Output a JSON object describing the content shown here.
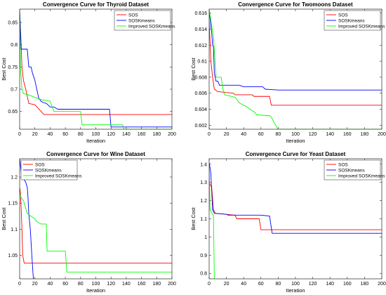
{
  "chart_data": [
    {
      "type": "line",
      "title": "Convergence Curve for Thyroid Dataset",
      "xlabel": "Iteration",
      "ylabel": "Best Cost",
      "xlim": [
        0,
        200
      ],
      "ylim": [
        0.61,
        0.88
      ],
      "xticks": [
        0,
        20,
        40,
        60,
        80,
        100,
        120,
        140,
        160,
        180,
        200
      ],
      "yticks": [
        0.65,
        0.7,
        0.75,
        0.8,
        0.85
      ],
      "ytick_labels": [
        "0.65",
        "0.7",
        "0.75",
        "0.8",
        "0.85"
      ],
      "legend_position": "top-right",
      "series": [
        {
          "name": "SOS",
          "color": "#ff0000",
          "points": [
            [
              0,
              0.875
            ],
            [
              2,
              0.8
            ],
            [
              3,
              0.75
            ],
            [
              5,
              0.72
            ],
            [
              8,
              0.7
            ],
            [
              12,
              0.668
            ],
            [
              20,
              0.665
            ],
            [
              32,
              0.643
            ],
            [
              200,
              0.643
            ]
          ]
        },
        {
          "name": "SOSKmeans",
          "color": "#0000ff",
          "points": [
            [
              0,
              0.88
            ],
            [
              2,
              0.79
            ],
            [
              10,
              0.79
            ],
            [
              12,
              0.75
            ],
            [
              15,
              0.75
            ],
            [
              17,
              0.735
            ],
            [
              20,
              0.72
            ],
            [
              25,
              0.68
            ],
            [
              28,
              0.673
            ],
            [
              31,
              0.67
            ],
            [
              35,
              0.668
            ],
            [
              37,
              0.665
            ],
            [
              40,
              0.66
            ],
            [
              45,
              0.66
            ],
            [
              50,
              0.655
            ],
            [
              118,
              0.655
            ],
            [
              120,
              0.615
            ],
            [
              200,
              0.615
            ]
          ]
        },
        {
          "name": "Improved SOSKmeans",
          "color": "#00ff00",
          "points": [
            [
              0,
              0.88
            ],
            [
              1,
              0.75
            ],
            [
              3,
              0.7
            ],
            [
              5,
              0.69
            ],
            [
              10,
              0.688
            ],
            [
              20,
              0.682
            ],
            [
              25,
              0.678
            ],
            [
              30,
              0.676
            ],
            [
              40,
              0.673
            ],
            [
              45,
              0.65
            ],
            [
              80,
              0.65
            ],
            [
              82,
              0.62
            ],
            [
              135,
              0.62
            ],
            [
              137,
              0.61
            ],
            [
              200,
              0.61
            ]
          ]
        }
      ]
    },
    {
      "type": "line",
      "title": "Convergence Curve for Twomoons Dataset",
      "xlabel": "Iteration",
      "ylabel": "Best Cost",
      "xlim": [
        0,
        200
      ],
      "ylim": [
        0.6015,
        0.6165
      ],
      "xticks": [
        0,
        20,
        40,
        60,
        80,
        100,
        120,
        140,
        160,
        180,
        200
      ],
      "yticks": [
        0.602,
        0.604,
        0.606,
        0.608,
        0.61,
        0.612,
        0.614,
        0.616
      ],
      "ytick_labels": [
        "0.602",
        "0.604",
        "0.606",
        "0.608",
        "0.61",
        "0.612",
        "0.614",
        "0.616"
      ],
      "legend_position": "top-right",
      "series": [
        {
          "name": "SOS",
          "color": "#ff0000",
          "points": [
            [
              0,
              0.615
            ],
            [
              2,
              0.61
            ],
            [
              4,
              0.608
            ],
            [
              6,
              0.6065
            ],
            [
              10,
              0.6062
            ],
            [
              28,
              0.606
            ],
            [
              30,
              0.6058
            ],
            [
              50,
              0.6058
            ],
            [
              52,
              0.6056
            ],
            [
              70,
              0.6056
            ],
            [
              72,
              0.6045
            ],
            [
              200,
              0.6045
            ]
          ]
        },
        {
          "name": "SOSKmeans",
          "color": "#0000ff",
          "points": [
            [
              0,
              0.6163
            ],
            [
              3,
              0.6135
            ],
            [
              4,
              0.612
            ],
            [
              5,
              0.6118
            ],
            [
              6,
              0.6085
            ],
            [
              8,
              0.6075
            ],
            [
              10,
              0.6075
            ],
            [
              12,
              0.607
            ],
            [
              35,
              0.607
            ],
            [
              40,
              0.6068
            ],
            [
              62,
              0.6068
            ],
            [
              65,
              0.6065
            ],
            [
              80,
              0.6064
            ],
            [
              200,
              0.6064
            ]
          ]
        },
        {
          "name": "Improved SOSKmeans",
          "color": "#00ff00",
          "points": [
            [
              0,
              0.6165
            ],
            [
              5,
              0.613
            ],
            [
              8,
              0.608
            ],
            [
              14,
              0.608
            ],
            [
              16,
              0.6065
            ],
            [
              18,
              0.6058
            ],
            [
              30,
              0.6055
            ],
            [
              35,
              0.6048
            ],
            [
              38,
              0.6046
            ],
            [
              42,
              0.6044
            ],
            [
              45,
              0.6042
            ],
            [
              50,
              0.6038
            ],
            [
              53,
              0.6036
            ],
            [
              55,
              0.6033
            ],
            [
              70,
              0.6032
            ],
            [
              72,
              0.603
            ],
            [
              78,
              0.6018
            ],
            [
              80,
              0.6015
            ],
            [
              200,
              0.6015
            ]
          ]
        }
      ]
    },
    {
      "type": "line",
      "title": "Convergence Curve for Wine Dataset",
      "xlabel": "Iteration",
      "ylabel": "Best Cost",
      "xlim": [
        0,
        200
      ],
      "ylim": [
        1.005,
        1.235
      ],
      "xticks": [
        0,
        20,
        40,
        60,
        80,
        100,
        120,
        140,
        160,
        180,
        200
      ],
      "yticks": [
        1.05,
        1.1,
        1.15,
        1.2
      ],
      "ytick_labels": [
        "1.05",
        "1.1",
        "1.15",
        "1.2"
      ],
      "legend_position": "top-left",
      "series": [
        {
          "name": "SOS",
          "color": "#ff0000",
          "points": [
            [
              0,
              1.18
            ],
            [
              1,
              1.17
            ],
            [
              2,
              1.14
            ],
            [
              3,
              1.1
            ],
            [
              4,
              1.05
            ],
            [
              6,
              1.035
            ],
            [
              200,
              1.035
            ]
          ]
        },
        {
          "name": "SOSKmeans",
          "color": "#0000ff",
          "points": [
            [
              0,
              1.235
            ],
            [
              2,
              1.21
            ],
            [
              4,
              1.2
            ],
            [
              6,
              1.195
            ],
            [
              8,
              1.19
            ],
            [
              10,
              1.18
            ],
            [
              11,
              1.16
            ],
            [
              12,
              1.13
            ],
            [
              14,
              1.1
            ],
            [
              16,
              1.05
            ],
            [
              18,
              1.005
            ]
          ]
        },
        {
          "name": "Improved SOSKmeans",
          "color": "#00ff00",
          "points": [
            [
              0,
              1.17
            ],
            [
              2,
              1.16
            ],
            [
              5,
              1.155
            ],
            [
              10,
              1.13
            ],
            [
              20,
              1.12
            ],
            [
              22,
              1.115
            ],
            [
              28,
              1.11
            ],
            [
              35,
              1.11
            ],
            [
              36,
              1.058
            ],
            [
              60,
              1.058
            ],
            [
              62,
              1.018
            ],
            [
              200,
              1.018
            ]
          ]
        }
      ]
    },
    {
      "type": "line",
      "title": "Convergence Curve for Yeast Dataset",
      "xlabel": "Iteration",
      "ylabel": "Best Cost",
      "xlim": [
        0,
        200
      ],
      "ylim": [
        0.77,
        1.43
      ],
      "xticks": [
        0,
        20,
        40,
        60,
        80,
        100,
        120,
        140,
        160,
        180,
        200
      ],
      "yticks": [
        0.8,
        0.9,
        1.0,
        1.1,
        1.2,
        1.3,
        1.4
      ],
      "ytick_labels": [
        "0.8",
        "0.9",
        "1",
        "1.1",
        "1.2",
        "1.3",
        "1.4"
      ],
      "legend_position": "top-right",
      "series": [
        {
          "name": "SOS",
          "color": "#ff0000",
          "points": [
            [
              0,
              1.3
            ],
            [
              3,
              1.27
            ],
            [
              5,
              1.15
            ],
            [
              7,
              1.13
            ],
            [
              30,
              1.12
            ],
            [
              32,
              1.1
            ],
            [
              58,
              1.1
            ],
            [
              60,
              1.04
            ],
            [
              200,
              1.04
            ]
          ]
        },
        {
          "name": "SOSKmeans",
          "color": "#0000ff",
          "points": [
            [
              0,
              1.41
            ],
            [
              2,
              1.35
            ],
            [
              3,
              1.25
            ],
            [
              4,
              1.15
            ],
            [
              6,
              1.13
            ],
            [
              20,
              1.125
            ],
            [
              22,
              1.12
            ],
            [
              60,
              1.12
            ],
            [
              70,
              1.115
            ],
            [
              73,
              1.02
            ],
            [
              200,
              1.02
            ]
          ]
        },
        {
          "name": "Improved SOSKmeans",
          "color": "#00ff00",
          "points": [
            [
              0,
              1.4
            ],
            [
              1,
              1.15
            ],
            [
              3,
              1.13
            ],
            [
              5,
              1.12
            ],
            [
              6,
              0.77
            ]
          ]
        }
      ]
    }
  ]
}
